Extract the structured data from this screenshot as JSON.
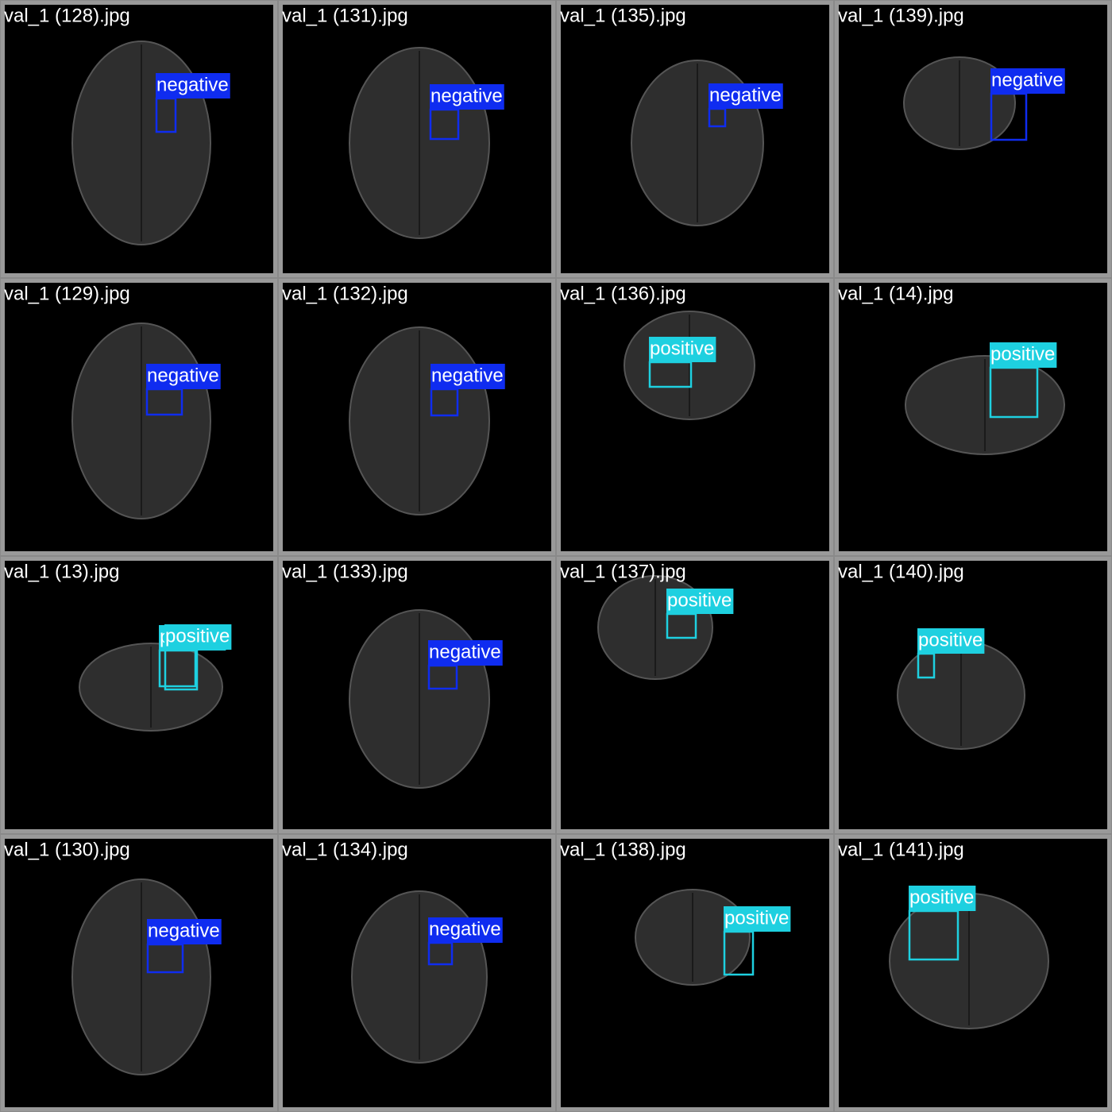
{
  "tiles": [
    {
      "filename": "val_1 (128).jpg",
      "detections": [
        {
          "label": "negative"
        }
      ]
    },
    {
      "filename": "val_1 (131).jpg",
      "detections": [
        {
          "label": "negative"
        }
      ]
    },
    {
      "filename": "val_1 (135).jpg",
      "detections": [
        {
          "label": "negative"
        }
      ]
    },
    {
      "filename": "val_1 (139).jpg",
      "detections": [
        {
          "label": "negative"
        }
      ]
    },
    {
      "filename": "val_1 (129).jpg",
      "detections": [
        {
          "label": "negative"
        }
      ]
    },
    {
      "filename": "val_1 (132).jpg",
      "detections": [
        {
          "label": "negative"
        }
      ]
    },
    {
      "filename": "val_1 (136).jpg",
      "detections": [
        {
          "label": "positive"
        }
      ]
    },
    {
      "filename": "val_1 (14).jpg",
      "detections": [
        {
          "label": "positive"
        }
      ]
    },
    {
      "filename": "val_1 (13).jpg",
      "detections": [
        {
          "label": "positive"
        },
        {
          "label": "positive"
        }
      ]
    },
    {
      "filename": "val_1 (133).jpg",
      "detections": [
        {
          "label": "negative"
        }
      ]
    },
    {
      "filename": "val_1 (137).jpg",
      "detections": [
        {
          "label": "positive"
        }
      ]
    },
    {
      "filename": "val_1 (140).jpg",
      "detections": [
        {
          "label": "positive"
        }
      ]
    },
    {
      "filename": "val_1 (130).jpg",
      "detections": [
        {
          "label": "negative"
        }
      ]
    },
    {
      "filename": "val_1 (134).jpg",
      "detections": [
        {
          "label": "negative"
        }
      ]
    },
    {
      "filename": "val_1 (138).jpg",
      "detections": [
        {
          "label": "positive"
        }
      ]
    },
    {
      "filename": "val_1 (141).jpg",
      "detections": [
        {
          "label": "positive"
        }
      ]
    }
  ]
}
